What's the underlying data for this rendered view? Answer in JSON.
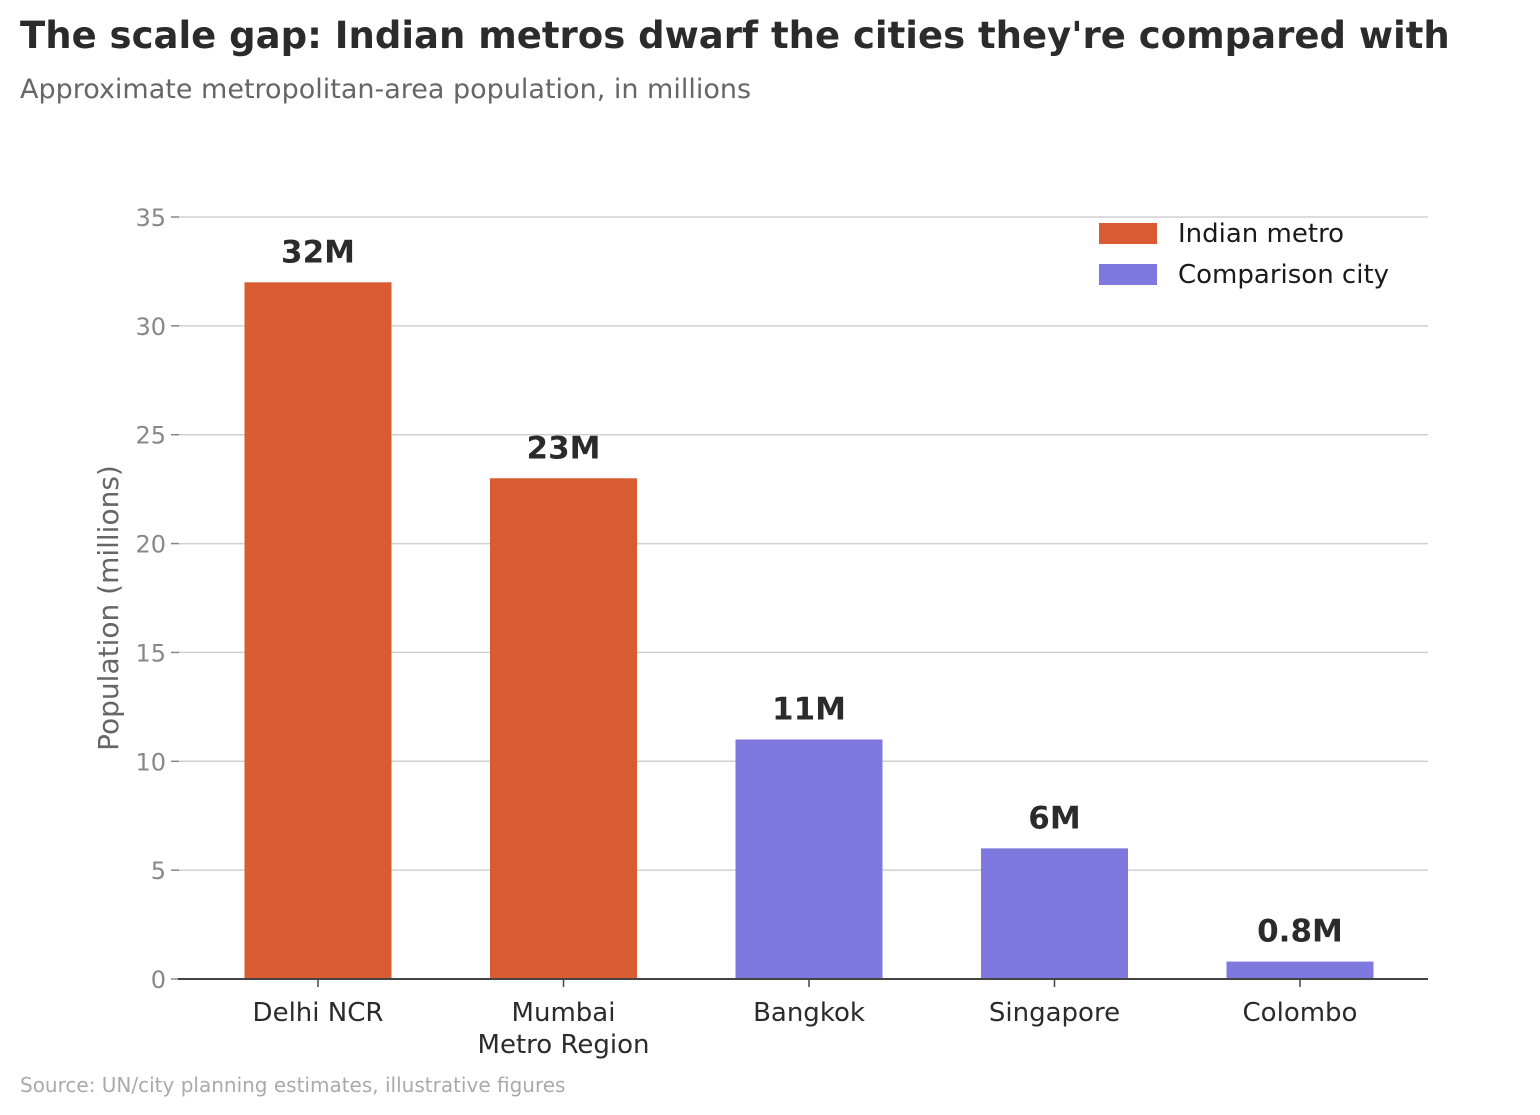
{
  "title": "The scale gap: Indian metros dwarf the cities they're compared with",
  "subtitle": "Approximate metropolitan-area population, in millions",
  "source": "Source: UN/city planning estimates, illustrative figures",
  "colors": {
    "indian": "#d95b32",
    "comparison": "#7f78de",
    "grid": "#d0d0d0",
    "axis": "#444444"
  },
  "chart_data": {
    "type": "bar",
    "categories": [
      [
        "Delhi NCR"
      ],
      [
        "Mumbai",
        "Metro Region"
      ],
      [
        "Bangkok"
      ],
      [
        "Singapore"
      ],
      [
        "Colombo"
      ]
    ],
    "values": [
      32,
      23,
      11,
      6,
      0.8
    ],
    "value_labels": [
      "32M",
      "23M",
      "11M",
      "6M",
      "0.8M"
    ],
    "groups": [
      "Indian metro",
      "Indian metro",
      "Comparison city",
      "Comparison city",
      "Comparison city"
    ],
    "ylabel": "Population (millions)",
    "xlabel": "",
    "ylim": [
      0,
      35
    ],
    "yticks": [
      0,
      5,
      10,
      15,
      20,
      25,
      30,
      35
    ],
    "grid": true,
    "legend": {
      "position": "top-right",
      "entries": [
        "Indian metro",
        "Comparison city"
      ]
    }
  }
}
